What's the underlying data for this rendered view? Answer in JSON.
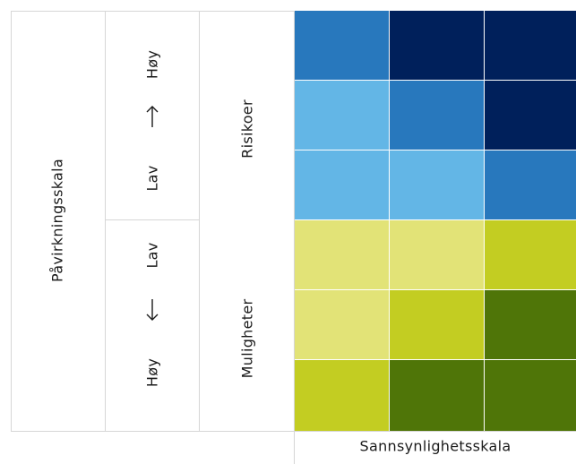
{
  "labels": {
    "y_axis": "Påvirkningsskala",
    "x_axis": "Sannsynlighetsskala",
    "risks": "Risikoer",
    "opportunities": "Muligheter",
    "risk_low": "Lav",
    "risk_high": "Høy",
    "opp_low": "Lav",
    "opp_high": "Høy"
  },
  "colors": {
    "blue_medium": "#2878bd",
    "blue_dark": "#00205b",
    "blue_light": "#63b6e6",
    "yellow_light": "#e2e377",
    "yellow_green": "#c3cd22",
    "green_dark": "#4f7508",
    "border": "#d6d6d6"
  },
  "matrix": [
    [
      "blue_medium",
      "blue_dark",
      "blue_dark"
    ],
    [
      "blue_light",
      "blue_medium",
      "blue_dark"
    ],
    [
      "blue_light",
      "blue_light",
      "blue_medium"
    ],
    [
      "yellow_light",
      "yellow_light",
      "yellow_green"
    ],
    [
      "yellow_light",
      "yellow_green",
      "green_dark"
    ],
    [
      "yellow_green",
      "green_dark",
      "green_dark"
    ]
  ]
}
